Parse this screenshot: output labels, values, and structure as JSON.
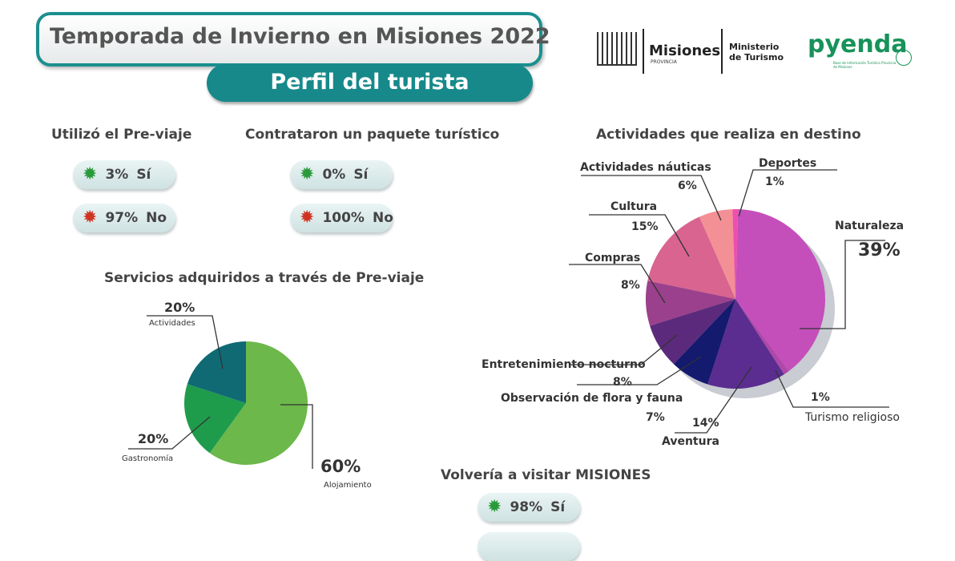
{
  "header": {
    "title": "Temporada de Invierno en Misiones 2022",
    "subtitle": "Perfil del turista"
  },
  "logos": {
    "misiones": "Misiones",
    "provincia": "PROVINCIA",
    "ministerio": "Ministerio de Turismo",
    "pyenda": "pyenda",
    "pyenda_tag": "Base de Información Turística Provincia de Misiones"
  },
  "previaje": {
    "title": "Utilizó el Pre-viaje",
    "yes": {
      "value": "3%",
      "label": "Sí"
    },
    "no": {
      "value": "97%",
      "label": "No"
    }
  },
  "paquete": {
    "title": "Contrataron un paquete turístico",
    "yes": {
      "value": "0%",
      "label": "Sí"
    },
    "no": {
      "value": "100%",
      "label": "No"
    }
  },
  "volveria": {
    "title": "Volvería a visitar MISIONES",
    "yes": {
      "value": "98%",
      "label": "Sí"
    }
  },
  "chart_data": [
    {
      "type": "pie",
      "title": "Servicios adquiridos a través de Pre-viaje",
      "slices": [
        {
          "label": "Alojamiento",
          "value": 60,
          "text": "60%",
          "color": "#6cb84b"
        },
        {
          "label": "Gastronomía",
          "value": 20,
          "text": "20%",
          "color": "#1f9b4c"
        },
        {
          "label": "Actividades",
          "value": 20,
          "text": "20%",
          "color": "#0f6a74"
        }
      ]
    },
    {
      "type": "pie",
      "title": "Actividades que realiza en destino",
      "slices": [
        {
          "label": "Naturaleza",
          "value": 39,
          "text": "39%",
          "color": "#c44fbb"
        },
        {
          "label": "Turismo religioso",
          "value": 1,
          "text": "1%",
          "color": "#b048a8"
        },
        {
          "label": "Aventura",
          "value": 14,
          "text": "14%",
          "color": "#5b2d90"
        },
        {
          "label": "Observación de flora y fauna",
          "value": 7,
          "text": "7%",
          "color": "#141a6e"
        },
        {
          "label": "Entretenimiento nocturno",
          "value": 8,
          "text": "8%",
          "color": "#5c2a7c"
        },
        {
          "label": "Compras",
          "value": 8,
          "text": "8%",
          "color": "#9b408c"
        },
        {
          "label": "Cultura",
          "value": 15,
          "text": "15%",
          "color": "#d8648f"
        },
        {
          "label": "Actividades náuticas",
          "value": 6,
          "text": "6%",
          "color": "#f39096"
        },
        {
          "label": "Deportes",
          "value": 1,
          "text": "1%",
          "color": "#ee4fae"
        }
      ]
    }
  ]
}
